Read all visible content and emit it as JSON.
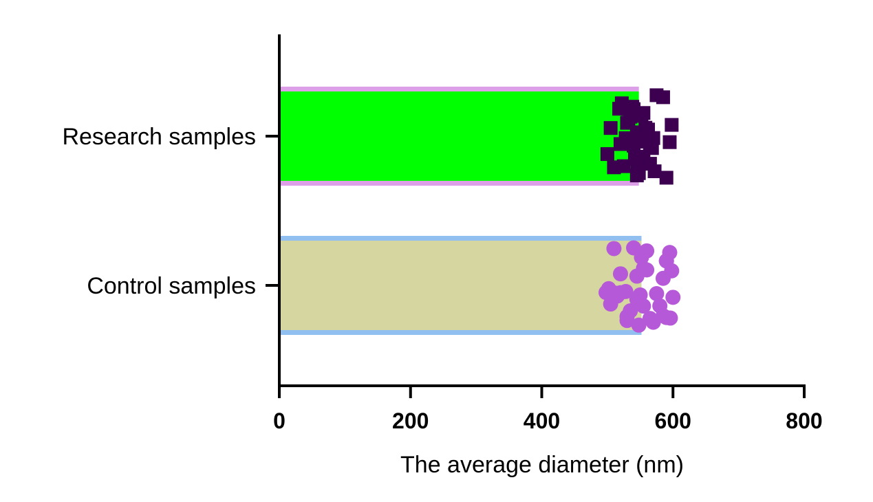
{
  "chart_data": {
    "type": "bar",
    "orientation": "horizontal",
    "categories": [
      "Research samples",
      "Control samples"
    ],
    "values": [
      548,
      552
    ],
    "xlabel": "The average diameter (nm)",
    "ylabel": "",
    "xlim": [
      0,
      800
    ],
    "xticks": [
      "0",
      "200",
      "400",
      "600",
      "800"
    ],
    "grid": false,
    "colors": {
      "research_fill": "#00ff00",
      "research_edge": "#dda0e8",
      "research_points": "#3d0050",
      "control_fill": "#d6d6a0",
      "control_edge": "#90bff0",
      "control_points": "#b659d9"
    },
    "points": {
      "research_samples": [
        540,
        552,
        560,
        545,
        535,
        565,
        555,
        548,
        528,
        570,
        575,
        520,
        540,
        558,
        546,
        532,
        562,
        550,
        590,
        500,
        510,
        525,
        585,
        565,
        548,
        555,
        542,
        538,
        572,
        518,
        530,
        560,
        598,
        505,
        595,
        522,
        568,
        545,
        552,
        540
      ],
      "control_samples": [
        498,
        510,
        520,
        585,
        590,
        596,
        600,
        555,
        560,
        545,
        530,
        528,
        502,
        515,
        550,
        570,
        565,
        540,
        535,
        590,
        598,
        552,
        548,
        510,
        505,
        575,
        580,
        520,
        560,
        590,
        595,
        545,
        530,
        585,
        555
      ]
    }
  }
}
